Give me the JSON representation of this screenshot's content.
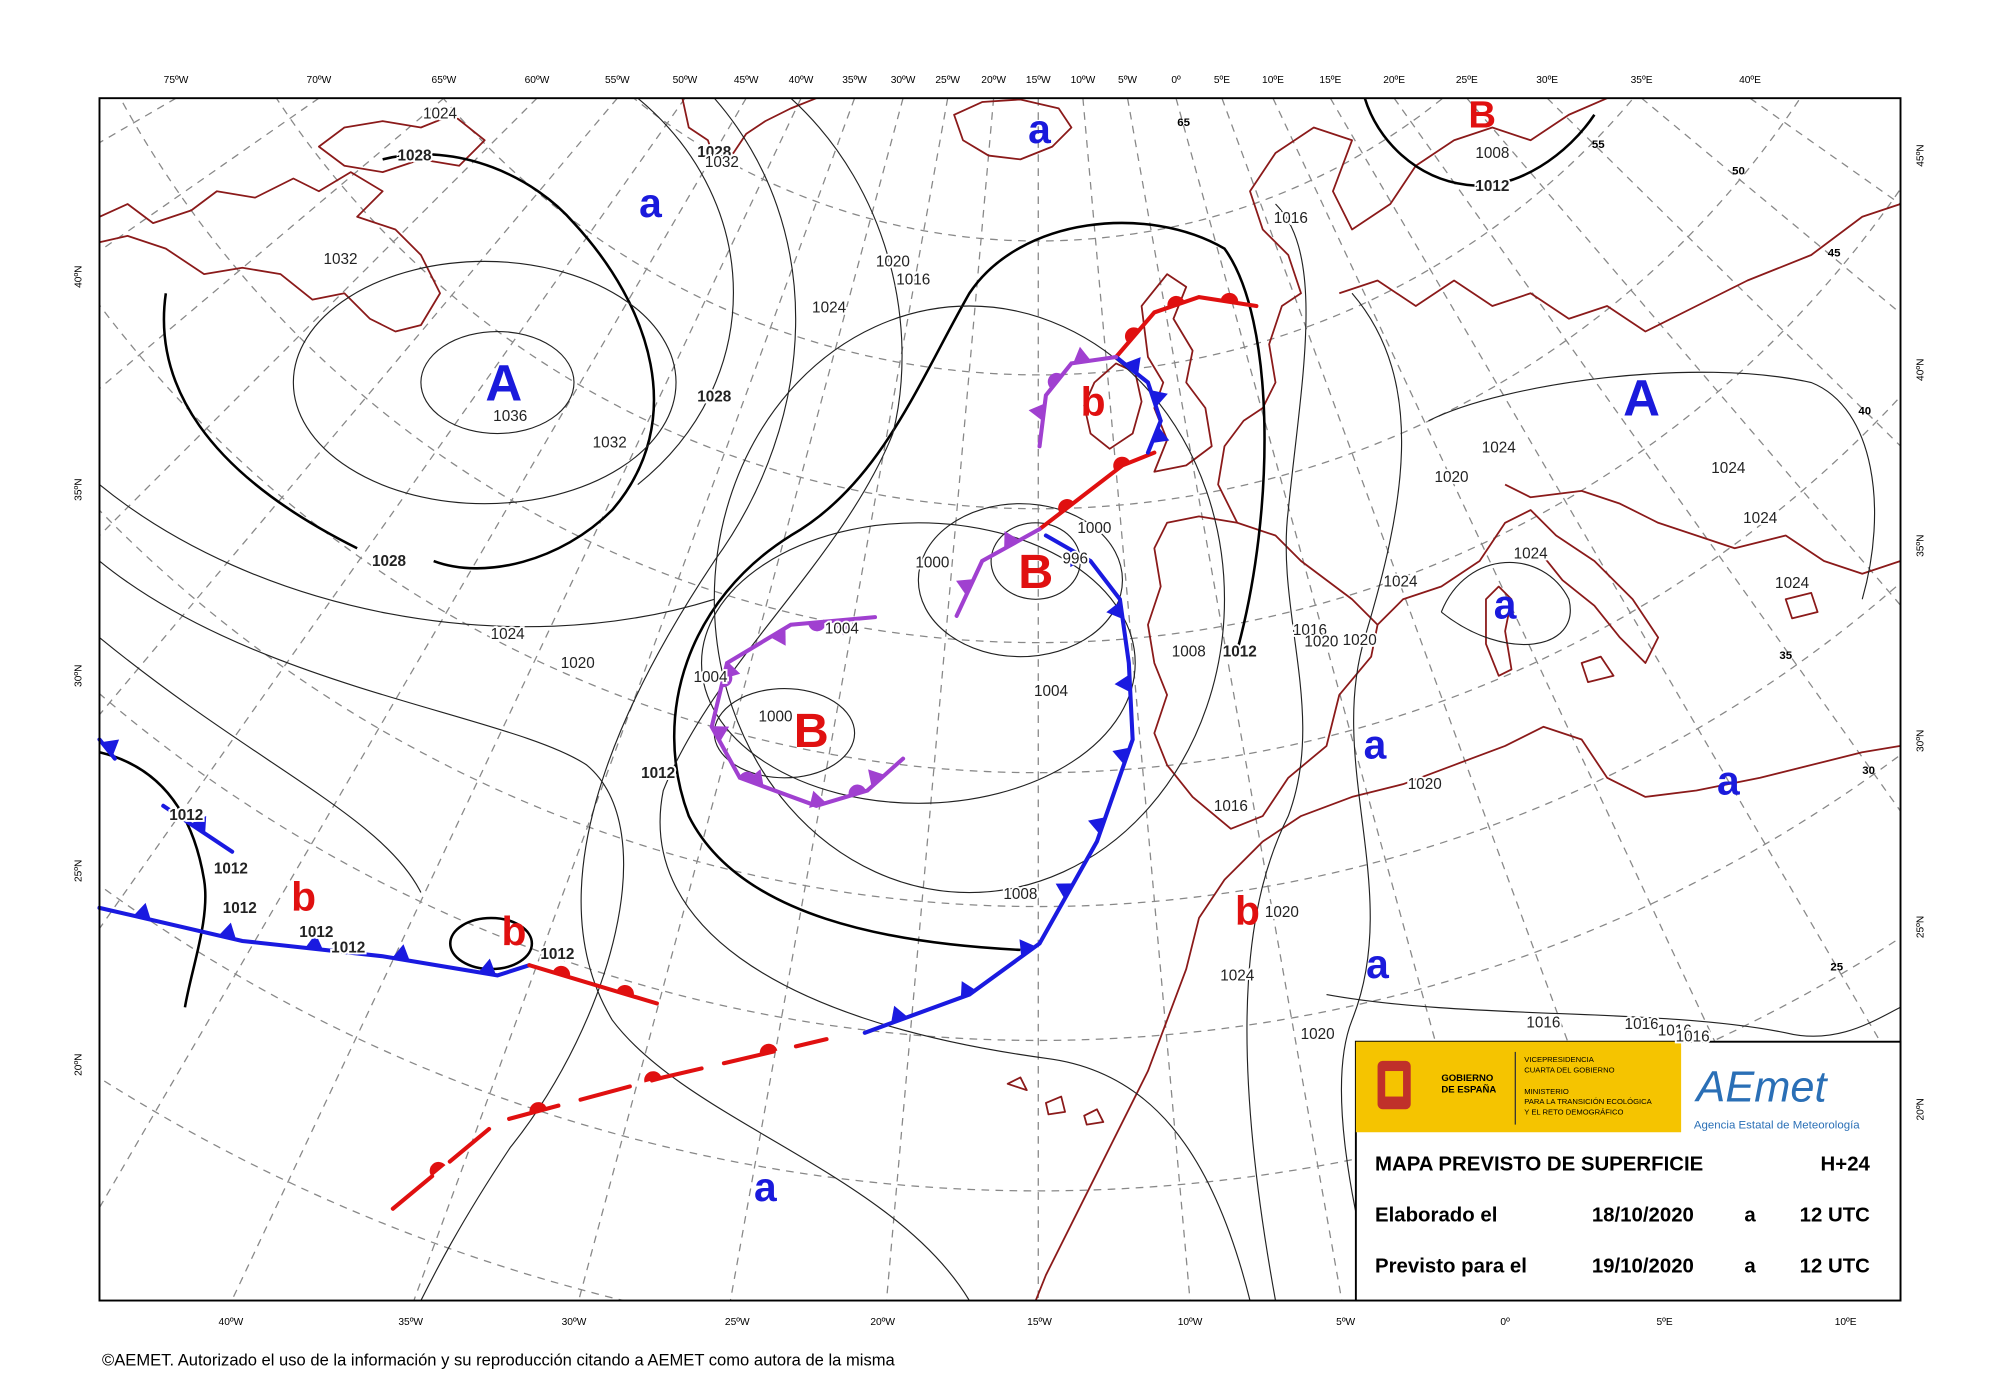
{
  "longitude_labels_top": [
    "75ºW",
    "70ºW",
    "65ºW",
    "60ºW",
    "55ºW",
    "50ºW",
    "45ºW",
    "40ºW",
    "35ºW",
    "30ºW",
    "25ºW",
    "20ºW",
    "15ºW",
    "10ºW",
    "5ºW",
    "0º",
    "5ºE",
    "10ºE",
    "15ºE",
    "20ºE",
    "25ºE",
    "30ºE",
    "35ºE",
    "40ºE"
  ],
  "longitude_labels_bottom": [
    "40ºW",
    "35ºW",
    "30ºW",
    "25ºW",
    "20ºW",
    "15ºW",
    "10ºW",
    "5ºW",
    "0º",
    "5ºE",
    "10ºE"
  ],
  "latitude_labels_left": [
    "40ºN",
    "35ºN",
    "30ºN",
    "25ºN",
    "20ºN"
  ],
  "latitude_labels_right": [
    "45ºN",
    "40ºN",
    "35ºN",
    "30ºN",
    "25ºN",
    "20ºN"
  ],
  "grid_labels": [
    "65",
    "55",
    "50",
    "45",
    "40",
    "35",
    "30",
    "25"
  ],
  "pressure_centers": [
    {
      "label": "A",
      "color": "#1a1adc"
    },
    {
      "label": "A",
      "color": "#1a1adc"
    },
    {
      "label": "B",
      "color": "#e01010"
    },
    {
      "label": "B",
      "color": "#e01010"
    },
    {
      "label": "B",
      "color": "#e01010"
    },
    {
      "label": "b",
      "color": "#e01010"
    },
    {
      "label": "b",
      "color": "#e01010"
    },
    {
      "label": "b",
      "color": "#e01010"
    },
    {
      "label": "b",
      "color": "#e01010"
    },
    {
      "label": "a",
      "color": "#1a1adc"
    },
    {
      "label": "a",
      "color": "#1a1adc"
    },
    {
      "label": "a",
      "color": "#1a1adc"
    },
    {
      "label": "a",
      "color": "#1a1adc"
    },
    {
      "label": "a",
      "color": "#1a1adc"
    },
    {
      "label": "a",
      "color": "#1a1adc"
    },
    {
      "label": "a",
      "color": "#1a1adc"
    }
  ],
  "isobar_labels": [
    "1024",
    "1028",
    "1028",
    "1032",
    "1032",
    "1036",
    "1032",
    "1028",
    "1028",
    "1024",
    "1020",
    "1024",
    "1020",
    "1016",
    "1000",
    "1000",
    "996",
    "1004",
    "1004",
    "1000",
    "1004",
    "1012",
    "1012",
    "1012",
    "1012",
    "1012",
    "1012",
    "1012",
    "1008",
    "1008",
    "1012",
    "1016",
    "1016",
    "1020",
    "1020",
    "1024",
    "1020",
    "1024",
    "1024",
    "1024",
    "1024",
    "1024",
    "1016",
    "1020",
    "1020",
    "1024",
    "1020",
    "1016",
    "1016",
    "1016",
    "1016",
    "1012",
    "1008"
  ],
  "info_box": {
    "government": [
      "GOBIERNO",
      "DE ESPAÑA"
    ],
    "vicepresidency": [
      "VICEPRESIDENCIA",
      "CUARTA DEL GOBIERNO"
    ],
    "ministry": [
      "MINISTERIO",
      "PARA LA TRANSICIÓN ECOLÓGICA",
      "Y EL RETO DEMOGRÁFICO"
    ],
    "logo": "AEmet",
    "agency": "Agencia Estatal de Meteorología",
    "title": "MAPA PREVISTO DE SUPERFICIE",
    "lead_time": "H+24",
    "rows": [
      [
        "Elaborado el",
        "18/10/2020",
        "a",
        "12 UTC"
      ],
      [
        "Previsto para el",
        "19/10/2020",
        "a",
        "12 UTC"
      ]
    ]
  },
  "footer": "©AEMET. Autorizado el uso de la información y su reproducción citando a AEMET como autora de la misma"
}
